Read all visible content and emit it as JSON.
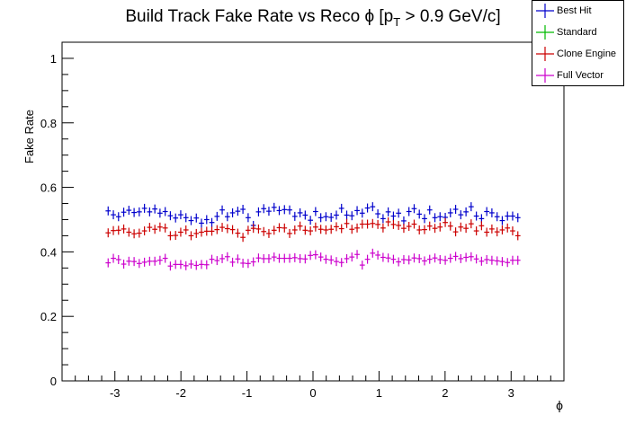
{
  "chart_data": {
    "type": "scatter",
    "title_main": "Build Track Fake Rate vs Reco ",
    "title_phi": "ϕ",
    "title_open": " [p",
    "title_sub": "T",
    "title_rest": " > 0.9 GeV/c]",
    "xlabel": "ϕ",
    "ylabel": "Fake Rate",
    "xlim": [
      -3.8,
      3.8
    ],
    "ylim": [
      0,
      1.05
    ],
    "xticks": [
      -3,
      -2,
      -1,
      0,
      1,
      2,
      3
    ],
    "yticks": [
      0,
      0.2,
      0.4,
      0.6,
      0.8,
      1
    ],
    "ytick_labels": [
      "0",
      "0.2",
      "0.4",
      "0.6",
      "0.8",
      "1"
    ],
    "xtick_labels": [
      "-3",
      "-2",
      "-1",
      "0",
      "1",
      "2",
      "3"
    ],
    "bin_half_width": 0.03927,
    "x": [
      -3.102,
      -3.023,
      -2.945,
      -2.866,
      -2.788,
      -2.709,
      -2.631,
      -2.552,
      -2.474,
      -2.395,
      -2.317,
      -2.238,
      -2.16,
      -2.081,
      -2.003,
      -1.924,
      -1.846,
      -1.767,
      -1.689,
      -1.61,
      -1.532,
      -1.453,
      -1.375,
      -1.296,
      -1.218,
      -1.139,
      -1.061,
      -0.982,
      -0.903,
      -0.825,
      -0.746,
      -0.668,
      -0.589,
      -0.511,
      -0.432,
      -0.354,
      -0.275,
      -0.196,
      -0.118,
      -0.039,
      0.039,
      0.118,
      0.196,
      0.275,
      0.354,
      0.432,
      0.511,
      0.589,
      0.668,
      0.746,
      0.825,
      0.903,
      0.982,
      1.061,
      1.139,
      1.218,
      1.296,
      1.375,
      1.453,
      1.532,
      1.61,
      1.689,
      1.767,
      1.846,
      1.924,
      2.003,
      2.081,
      2.16,
      2.238,
      2.317,
      2.395,
      2.474,
      2.552,
      2.631,
      2.709,
      2.788,
      2.866,
      2.945,
      3.023,
      3.102
    ],
    "series": [
      {
        "name": "Best Hit",
        "color": "#0000cc",
        "values": [
          0.527,
          0.515,
          0.509,
          0.523,
          0.529,
          0.522,
          0.524,
          0.535,
          0.524,
          0.533,
          0.52,
          0.525,
          0.512,
          0.505,
          0.515,
          0.506,
          0.497,
          0.505,
          0.489,
          0.5,
          0.491,
          0.51,
          0.53,
          0.509,
          0.521,
          0.526,
          0.532,
          0.506,
          0.482,
          0.524,
          0.534,
          0.526,
          0.538,
          0.528,
          0.531,
          0.53,
          0.51,
          0.521,
          0.514,
          0.498,
          0.525,
          0.506,
          0.509,
          0.507,
          0.514,
          0.535,
          0.514,
          0.512,
          0.528,
          0.52,
          0.536,
          0.54,
          0.518,
          0.503,
          0.524,
          0.511,
          0.52,
          0.496,
          0.525,
          0.534,
          0.517,
          0.503,
          0.53,
          0.506,
          0.509,
          0.507,
          0.521,
          0.532,
          0.515,
          0.524,
          0.54,
          0.511,
          0.503,
          0.525,
          0.521,
          0.509,
          0.497,
          0.511,
          0.511,
          0.506
        ]
      },
      {
        "name": "Standard",
        "color": "#00bb00",
        "values": []
      },
      {
        "name": "Clone Engine",
        "color": "#cc0000",
        "values": [
          0.459,
          0.466,
          0.467,
          0.471,
          0.461,
          0.456,
          0.458,
          0.465,
          0.476,
          0.47,
          0.477,
          0.474,
          0.45,
          0.451,
          0.461,
          0.468,
          0.45,
          0.457,
          0.461,
          0.464,
          0.464,
          0.469,
          0.476,
          0.472,
          0.469,
          0.458,
          0.445,
          0.467,
          0.473,
          0.471,
          0.463,
          0.457,
          0.467,
          0.475,
          0.474,
          0.457,
          0.468,
          0.48,
          0.467,
          0.465,
          0.477,
          0.47,
          0.468,
          0.47,
          0.478,
          0.472,
          0.488,
          0.47,
          0.474,
          0.486,
          0.486,
          0.488,
          0.485,
          0.474,
          0.493,
          0.485,
          0.482,
          0.473,
          0.479,
          0.486,
          0.468,
          0.469,
          0.48,
          0.473,
          0.477,
          0.491,
          0.48,
          0.462,
          0.477,
          0.473,
          0.487,
          0.465,
          0.481,
          0.461,
          0.471,
          0.462,
          0.468,
          0.474,
          0.465,
          0.45
        ]
      },
      {
        "name": "Full Vector",
        "color": "#cc00cc",
        "values": [
          0.366,
          0.38,
          0.376,
          0.362,
          0.371,
          0.37,
          0.364,
          0.368,
          0.371,
          0.371,
          0.374,
          0.38,
          0.356,
          0.361,
          0.361,
          0.357,
          0.362,
          0.358,
          0.361,
          0.36,
          0.377,
          0.373,
          0.379,
          0.385,
          0.368,
          0.378,
          0.365,
          0.364,
          0.369,
          0.381,
          0.379,
          0.379,
          0.384,
          0.38,
          0.38,
          0.38,
          0.382,
          0.379,
          0.378,
          0.389,
          0.391,
          0.384,
          0.377,
          0.375,
          0.37,
          0.367,
          0.379,
          0.384,
          0.392,
          0.359,
          0.377,
          0.396,
          0.39,
          0.383,
          0.381,
          0.377,
          0.369,
          0.376,
          0.375,
          0.381,
          0.379,
          0.372,
          0.377,
          0.381,
          0.376,
          0.374,
          0.38,
          0.386,
          0.379,
          0.383,
          0.385,
          0.378,
          0.371,
          0.376,
          0.374,
          0.372,
          0.37,
          0.367,
          0.374,
          0.374
        ]
      }
    ],
    "legend_position": "top-right",
    "grid": false
  }
}
